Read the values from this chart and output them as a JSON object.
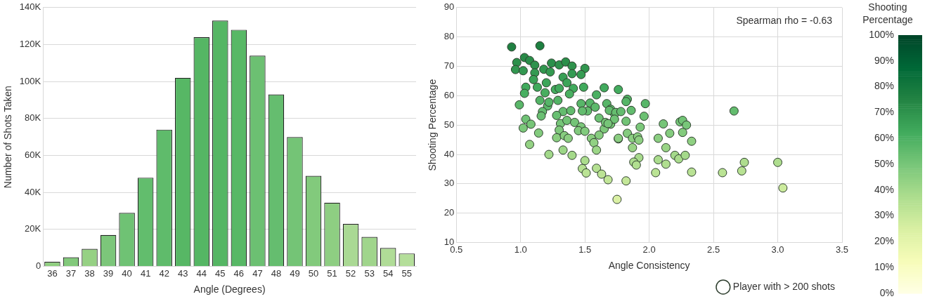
{
  "chart_data": [
    {
      "type": "bar",
      "xlabel": "Angle (Degrees)",
      "ylabel": "Number of Shots Taken",
      "categories": [
        "36",
        "37",
        "38",
        "39",
        "40",
        "41",
        "42",
        "43",
        "44",
        "45",
        "46",
        "47",
        "48",
        "49",
        "50",
        "51",
        "52",
        "53",
        "54",
        "55"
      ],
      "values": [
        2500,
        5000,
        9500,
        17000,
        29000,
        48000,
        74000,
        102000,
        124000,
        133000,
        128000,
        114000,
        93000,
        70000,
        49000,
        34500,
        23000,
        16000,
        10000,
        7000
      ],
      "colors": [
        "#8fcf7f",
        "#82c97b",
        "#96d184",
        "#7cc67a",
        "#6fc274",
        "#62bd6d",
        "#5fbb6b",
        "#57b765",
        "#55b664",
        "#55b664",
        "#58b866",
        "#6cc072",
        "#65bd6f",
        "#74c476",
        "#82ca7c",
        "#8ece82",
        "#aad994",
        "#a0d58c",
        "#b0dc97",
        "#b4de9a"
      ],
      "ylim": [
        0,
        140000
      ],
      "yticks": [
        0,
        {
          "value": 20000,
          "label": "20K"
        },
        {
          "value": 40000,
          "label": "40K"
        },
        {
          "value": 60000,
          "label": "60K"
        },
        {
          "value": 80000,
          "label": "80K"
        },
        {
          "value": 100000,
          "label": "100K"
        },
        {
          "value": 120000,
          "label": "120K"
        },
        {
          "value": 140000,
          "label": "140K"
        }
      ],
      "grid": "y"
    },
    {
      "type": "scatter",
      "xlabel": "Angle Consistency",
      "ylabel": "Shooting Percentage",
      "clabel": "Shooting Percentage",
      "annotations": [
        "Spearman rho = -0.63"
      ],
      "xlim": [
        0.5,
        3.5
      ],
      "ylim": [
        10,
        90
      ],
      "xticks": [
        {
          "value": 0.5,
          "label": "0.5"
        },
        {
          "value": 1,
          "label": "1.0"
        },
        {
          "value": 1.5,
          "label": "1.5"
        },
        {
          "value": 2,
          "label": "2.0"
        },
        {
          "value": 2.5,
          "label": "2.5"
        },
        {
          "value": 3,
          "label": "3.0"
        },
        {
          "value": 3.5,
          "label": "3.5"
        }
      ],
      "yticks": [
        10,
        20,
        30,
        40,
        50,
        60,
        70,
        80,
        90
      ],
      "clim": [
        0,
        100
      ],
      "cticks": [
        {
          "value": 0,
          "label": "0%"
        },
        {
          "value": 10,
          "label": "10%"
        },
        {
          "value": 20,
          "label": "20%"
        },
        {
          "value": 30,
          "label": "30%"
        },
        {
          "value": 40,
          "label": "40%"
        },
        {
          "value": 50,
          "label": "50%"
        },
        {
          "value": 60,
          "label": "60%"
        },
        {
          "value": 70,
          "label": "70%"
        },
        {
          "value": 80,
          "label": "80%"
        },
        {
          "value": 90,
          "label": "90%"
        },
        {
          "value": 100,
          "label": "100%"
        }
      ],
      "grid": true,
      "legend": "bottom right",
      "marker": "circle",
      "series": [
        {
          "name": "Player with > 200 shots",
          "color": "#2f3f2f",
          "x": [
            0.93,
            1.15,
            0.97,
            1.03,
            1.07,
            0.96,
            1.02,
            1.11,
            1.11,
            1.18,
            1.24,
            1.3,
            1.35,
            1.4,
            1.5,
            1.47,
            1.4,
            1.23,
            1.04,
            1.03,
            1.1,
            1.13,
            1.19,
            1.2,
            1.27,
            1.3,
            1.33,
            1.36,
            1.41,
            1.49,
            1.38,
            0.99,
            1.15,
            1.21,
            1.17,
            1.16,
            1.29,
            1.22,
            1.33,
            1.39,
            1.47,
            1.54,
            1.52,
            1.48,
            1.28,
            1.58,
            1.59,
            1.65,
            1.04,
            1.08,
            1.02,
            1.14,
            1.07,
            1.22,
            1.33,
            1.4,
            1.31,
            1.3,
            1.36,
            1.42,
            1.47,
            1.45,
            1.5,
            1.28,
            1.34,
            1.37,
            1.55,
            1.57,
            1.59,
            1.5,
            1.48,
            1.51,
            1.59,
            1.63,
            1.68,
            1.75,
            1.61,
            1.65,
            1.61,
            1.66,
            1.7,
            1.67,
            1.7,
            1.73,
            1.76,
            1.76,
            1.83,
            1.82,
            1.97,
            1.69,
            1.74,
            1.78,
            1.86,
            1.73,
            1.68,
            1.96,
            1.82,
            1.93,
            2.11,
            2.24,
            2.26,
            2.29,
            2.26,
            2.16,
            2.33,
            2.07,
            2.13,
            1.83,
            1.76,
            1.87,
            1.91,
            1.92,
            1.87,
            1.92,
            1.88,
            1.9,
            2.07,
            2.13,
            2.2,
            2.23,
            2.28,
            2.05,
            2.33,
            2.57,
            2.72,
            2.74,
            3.0,
            3.04,
            2.66,
            1.82
          ],
          "values": [
            76.6,
            77.0,
            71.3,
            73.0,
            72.0,
            68.9,
            68.5,
            70.4,
            67.8,
            69.0,
            71.1,
            70.5,
            71.5,
            70.1,
            69.3,
            67.2,
            67.5,
            68.1,
            62.9,
            60.8,
            65.5,
            62.9,
            61.0,
            64.4,
            62.1,
            62.5,
            66.3,
            64.4,
            62.5,
            62.9,
            60.6,
            56.9,
            58.4,
            56.5,
            54.6,
            53.1,
            58.4,
            57.8,
            54.6,
            54.9,
            57.3,
            57.5,
            54.8,
            54.8,
            53.3,
            56.1,
            60.3,
            62.7,
            52.0,
            50.3,
            49.0,
            47.3,
            43.4,
            40.0,
            41.5,
            39.7,
            50.5,
            48.3,
            51.6,
            50.9,
            49.4,
            48.1,
            47.9,
            45.7,
            46.4,
            45.5,
            45.5,
            44.0,
            41.5,
            37.9,
            35.2,
            33.7,
            35.3,
            33.3,
            31.4,
            24.7,
            52.4,
            48.7,
            46.6,
            50.9,
            50.3,
            57.3,
            55.4,
            53.9,
            62.1,
            45.3,
            58.8,
            58.0,
            57.3,
            55.0,
            54.3,
            54.6,
            55.0,
            52.0,
            50.5,
            53.0,
            51.3,
            49.3,
            50.4,
            51.1,
            51.6,
            50.0,
            47.5,
            47.2,
            44.5,
            45.5,
            42.3,
            47.2,
            45.5,
            45.5,
            46.0,
            44.9,
            42.3,
            38.9,
            37.4,
            36.4,
            38.2,
            36.7,
            39.7,
            38.5,
            39.7,
            33.8,
            34.0,
            33.8,
            34.4,
            37.3,
            37.3,
            28.6,
            54.8,
            31.0
          ],
          "cvalues": [
            76.6,
            77.0,
            71.3,
            73.0,
            72.0,
            68.9,
            68.5,
            70.4,
            67.8,
            69.0,
            71.1,
            70.5,
            71.5,
            70.1,
            69.3,
            67.2,
            67.5,
            68.1,
            62.9,
            60.8,
            65.5,
            62.9,
            61.0,
            64.4,
            62.1,
            62.5,
            66.3,
            64.4,
            62.5,
            62.9,
            60.6,
            56.9,
            58.4,
            56.5,
            54.6,
            53.1,
            58.4,
            57.8,
            54.6,
            54.9,
            57.3,
            57.5,
            54.8,
            54.8,
            53.3,
            56.1,
            60.3,
            62.7,
            52.0,
            50.3,
            49.0,
            47.3,
            43.4,
            40.0,
            41.5,
            39.7,
            50.5,
            48.3,
            51.6,
            50.9,
            49.4,
            48.1,
            47.9,
            45.7,
            46.4,
            45.5,
            45.5,
            44.0,
            41.5,
            37.9,
            35.2,
            33.7,
            35.3,
            33.3,
            31.4,
            24.7,
            52.4,
            48.7,
            46.6,
            50.9,
            50.3,
            57.3,
            55.4,
            53.9,
            62.1,
            45.3,
            58.8,
            58.0,
            57.3,
            55.0,
            54.3,
            54.6,
            55.0,
            52.0,
            50.5,
            53.0,
            51.3,
            49.3,
            50.4,
            51.1,
            51.6,
            50.0,
            47.5,
            47.2,
            44.5,
            45.5,
            42.3,
            47.2,
            45.5,
            45.5,
            46.0,
            44.9,
            42.3,
            38.9,
            37.4,
            36.4,
            38.2,
            36.7,
            39.7,
            38.5,
            39.7,
            33.8,
            34.0,
            33.8,
            34.4,
            37.3,
            37.3,
            28.6,
            54.8,
            31.0
          ]
        }
      ]
    }
  ]
}
